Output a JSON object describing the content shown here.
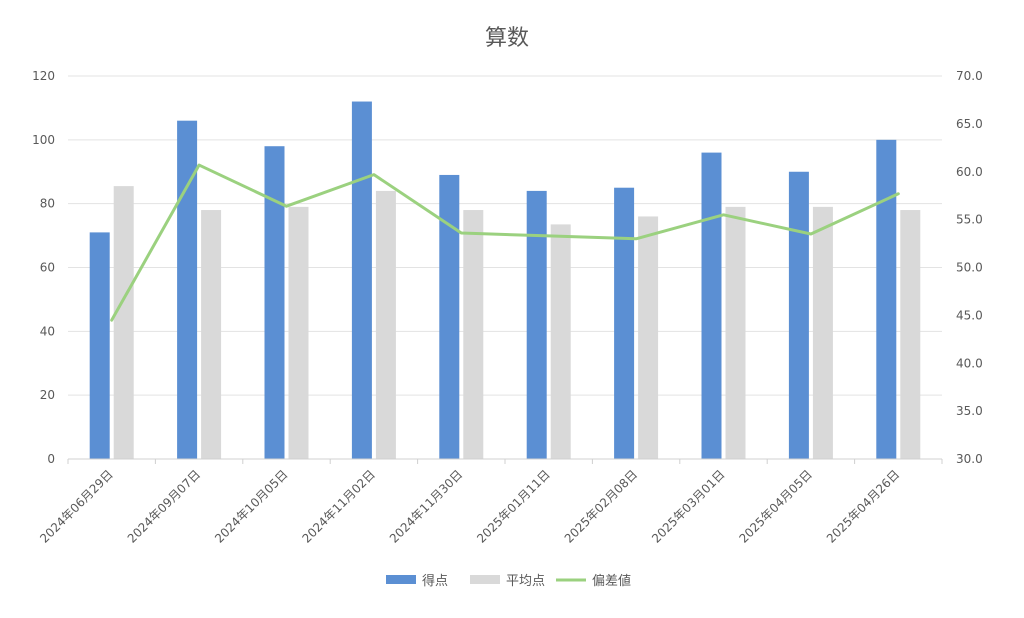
{
  "chart_data": {
    "type": "bar",
    "title": "算数",
    "categories": [
      "2024年06月29日",
      "2024年09月07日",
      "2024年10月05日",
      "2024年11月02日",
      "2024年11月30日",
      "2025年01月11日",
      "2025年02月08日",
      "2025年03月01日",
      "2025年04月05日",
      "2025年04月26日"
    ],
    "series": [
      {
        "name": "得点",
        "kind": "bar",
        "axis": "left",
        "color": "#5b8fd3",
        "values": [
          71,
          106,
          98,
          112,
          89,
          84,
          85,
          96,
          90,
          100
        ]
      },
      {
        "name": "平均点",
        "kind": "bar",
        "axis": "left",
        "color": "#d9d9d9",
        "values": [
          85.5,
          78,
          79,
          84,
          78,
          73.5,
          76,
          79,
          79,
          78
        ]
      },
      {
        "name": "偏差値",
        "kind": "line",
        "axis": "right",
        "color": "#9bd17f",
        "values": [
          44.5,
          60.7,
          56.4,
          59.7,
          53.6,
          53.3,
          53.0,
          55.5,
          53.5,
          57.7
        ]
      }
    ],
    "ylim": [
      0,
      120
    ],
    "y2lim": [
      30,
      70
    ],
    "yticks": [
      "0",
      "20",
      "40",
      "60",
      "80",
      "100",
      "120"
    ],
    "y2ticks": [
      "30.0",
      "35.0",
      "40.0",
      "45.0",
      "50.0",
      "55.0",
      "60.0",
      "65.0",
      "70.0"
    ],
    "grid": true,
    "legend_position": "bottom"
  }
}
